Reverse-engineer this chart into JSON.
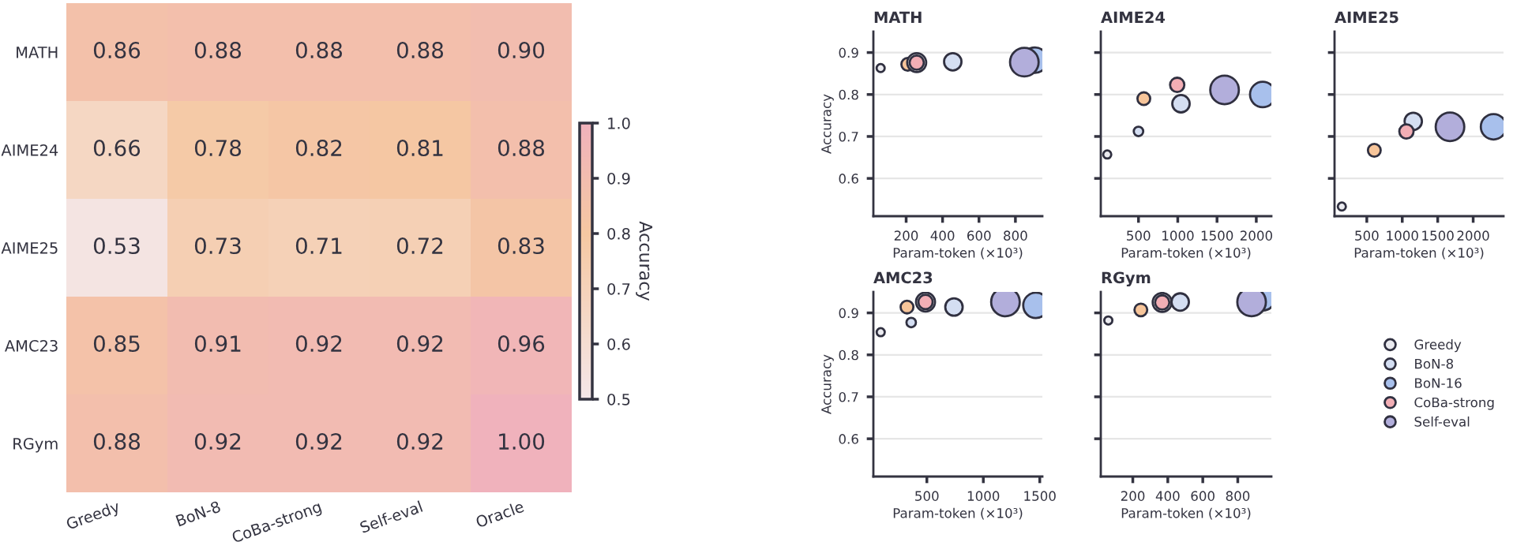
{
  "chart_data": [
    {
      "type": "heatmap",
      "categories": [
        "Greedy",
        "BoN-8",
        "CoBa-strong",
        "Self-eval",
        "Oracle"
      ],
      "y_categories": [
        "MATH",
        "AIME24",
        "AIME25",
        "AMC23",
        "RGym"
      ],
      "cells": [
        [
          0.86,
          0.88,
          0.88,
          0.88,
          0.9
        ],
        [
          0.66,
          0.78,
          0.82,
          0.81,
          0.88
        ],
        [
          0.53,
          0.73,
          0.71,
          0.72,
          0.83
        ],
        [
          0.85,
          0.91,
          0.92,
          0.92,
          0.96
        ],
        [
          0.88,
          0.92,
          0.92,
          0.92,
          1.0
        ]
      ],
      "cell_labels": [
        [
          "0.86",
          "0.88",
          "0.88",
          "0.88",
          "0.90"
        ],
        [
          "0.66",
          "0.78",
          "0.82",
          "0.81",
          "0.88"
        ],
        [
          "0.53",
          "0.73",
          "0.71",
          "0.72",
          "0.83"
        ],
        [
          "0.85",
          "0.91",
          "0.92",
          "0.92",
          "0.96"
        ],
        [
          "0.88",
          "0.92",
          "0.92",
          "0.92",
          "1.00"
        ]
      ],
      "clim": [
        0.5,
        1.0
      ],
      "cticks": [
        {
          "value": 0.5,
          "label": "0.5"
        },
        {
          "value": 0.6,
          "label": "0.6"
        },
        {
          "value": 0.7,
          "label": "0.7"
        },
        {
          "value": 0.8,
          "label": "0.8"
        },
        {
          "value": 0.9,
          "label": "0.9"
        },
        {
          "value": 1.0,
          "label": "1.0"
        }
      ],
      "clabel": "Accuracy"
    },
    {
      "type": "bubble",
      "title": "MATH",
      "xlabel": "Param-token (×10³)",
      "ylabel": "Accuracy",
      "xlim": [
        20,
        948
      ],
      "xticks": [
        200,
        400,
        600,
        800
      ],
      "ylim": [
        0.51,
        0.95
      ],
      "yticks": [
        0.6,
        0.7,
        0.8,
        0.9
      ],
      "grid": "y",
      "series": [
        {
          "color": "#f7c59a",
          "x": [
            209
          ],
          "values": [
            0.872
          ],
          "sizes": [
            0.2
          ]
        },
        {
          "color": "#ffffff",
          "x": [
            258
          ],
          "values": [
            0.876
          ],
          "sizes": [
            0.44
          ]
        },
        {
          "color": "#ebebf0",
          "x": [
            60
          ],
          "values": [
            0.863
          ],
          "sizes": [
            0.08
          ]
        },
        {
          "color": "#d4def2",
          "x": [
            456
          ],
          "values": [
            0.878
          ],
          "sizes": [
            0.37
          ]
        },
        {
          "color": "#a8c0ec",
          "x": [
            907
          ],
          "values": [
            0.882
          ],
          "sizes": [
            0.79
          ]
        },
        {
          "color": "#f2aeb5",
          "x": [
            258
          ],
          "values": [
            0.876
          ],
          "sizes": [
            0.25
          ]
        },
        {
          "color": "#b2aedb",
          "x": [
            849
          ],
          "values": [
            0.877
          ],
          "sizes": [
            1
          ]
        }
      ]
    },
    {
      "type": "bubble",
      "title": "AIME24",
      "xlabel": "Param-token (×10³)",
      "xlim": [
        20,
        2192
      ],
      "xticks": [
        500,
        1000,
        1500,
        2000
      ],
      "ylim": [
        0.51,
        0.95
      ],
      "yticks": [
        0.6,
        0.7,
        0.8,
        0.9
      ],
      "grid": "y",
      "tick_labels": "x",
      "series": [
        {
          "color": "#f7c59a",
          "x": [
            568
          ],
          "values": [
            0.79
          ],
          "sizes": [
            0.2
          ]
        },
        {
          "color": "#d4def2",
          "x": [
            500
          ],
          "values": [
            0.712
          ],
          "sizes": [
            0.11
          ]
        },
        {
          "color": "#ebebf0",
          "x": [
            102
          ],
          "values": [
            0.657
          ],
          "sizes": [
            0.08
          ]
        },
        {
          "color": "#d4def2",
          "x": [
            1041
          ],
          "values": [
            0.778
          ],
          "sizes": [
            0.37
          ]
        },
        {
          "color": "#a8c0ec",
          "x": [
            2082
          ],
          "values": [
            0.8
          ],
          "sizes": [
            0.79
          ]
        },
        {
          "color": "#f2aeb5",
          "x": [
            993
          ],
          "values": [
            0.823
          ],
          "sizes": [
            0.25
          ]
        },
        {
          "color": "#b2aedb",
          "x": [
            1596
          ],
          "values": [
            0.811
          ],
          "sizes": [
            1
          ]
        }
      ]
    },
    {
      "type": "bubble",
      "title": "AIME25",
      "xlabel": "Param-token (×10³)",
      "xlim": [
        45,
        2428
      ],
      "xticks": [
        500,
        1000,
        1500,
        2000
      ],
      "ylim": [
        0.51,
        0.95
      ],
      "yticks": [
        0.6,
        0.7,
        0.8,
        0.9
      ],
      "grid": "y",
      "tick_labels": "x",
      "series": [
        {
          "color": "#f7c59a",
          "x": [
            606
          ],
          "values": [
            0.667
          ],
          "sizes": [
            0.2
          ]
        },
        {
          "color": "#ebebf0",
          "x": [
            148
          ],
          "values": [
            0.533
          ],
          "sizes": [
            0.08
          ]
        },
        {
          "color": "#d4def2",
          "x": [
            1155
          ],
          "values": [
            0.736
          ],
          "sizes": [
            0.37
          ]
        },
        {
          "color": "#a8c0ec",
          "x": [
            2287
          ],
          "values": [
            0.723
          ],
          "sizes": [
            0.79
          ]
        },
        {
          "color": "#f2aeb5",
          "x": [
            1059
          ],
          "values": [
            0.712
          ],
          "sizes": [
            0.25
          ]
        },
        {
          "color": "#b2aedb",
          "x": [
            1673
          ],
          "values": [
            0.723
          ],
          "sizes": [
            1
          ]
        }
      ]
    },
    {
      "type": "bubble",
      "title": "AMC23",
      "xlabel": "Param-token (×10³)",
      "ylabel": "Accuracy",
      "xlim": [
        26,
        1523
      ],
      "xticks": [
        500,
        1000,
        1500
      ],
      "ylim": [
        0.51,
        0.95
      ],
      "yticks": [
        0.6,
        0.7,
        0.8,
        0.9
      ],
      "grid": "y",
      "series": [
        {
          "color": "#f7c59a",
          "x": [
            324
          ],
          "values": [
            0.914
          ],
          "sizes": [
            0.2
          ]
        },
        {
          "color": "#d4def2",
          "x": [
            361
          ],
          "values": [
            0.877
          ],
          "sizes": [
            0.11
          ]
        },
        {
          "color": "#ffffff",
          "x": [
            488
          ],
          "values": [
            0.926
          ],
          "sizes": [
            0.44
          ]
        },
        {
          "color": "#ebebf0",
          "x": [
            91
          ],
          "values": [
            0.854
          ],
          "sizes": [
            0.08
          ]
        },
        {
          "color": "#d4def2",
          "x": [
            740
          ],
          "values": [
            0.914
          ],
          "sizes": [
            0.37
          ]
        },
        {
          "color": "#a8c0ec",
          "x": [
            1466
          ],
          "values": [
            0.918
          ],
          "sizes": [
            0.79
          ]
        },
        {
          "color": "#f2aeb5",
          "x": [
            488
          ],
          "values": [
            0.926
          ],
          "sizes": [
            0.25
          ]
        },
        {
          "color": "#b2aedb",
          "x": [
            1196
          ],
          "values": [
            0.926
          ],
          "sizes": [
            1
          ]
        }
      ]
    },
    {
      "type": "bubble",
      "title": "RGym",
      "xlabel": "Param-token (×10³)",
      "xlim": [
        17,
        992
      ],
      "xticks": [
        200,
        400,
        600,
        800
      ],
      "ylim": [
        0.51,
        0.95
      ],
      "yticks": [
        0.6,
        0.7,
        0.8,
        0.9
      ],
      "grid": "y",
      "tick_labels": "x",
      "legend": "right",
      "series": [
        {
          "color": "#f7c59a",
          "x": [
            246
          ],
          "values": [
            0.907
          ],
          "sizes": [
            0.2
          ]
        },
        {
          "color": "#ffffff",
          "x": [
            368
          ],
          "values": [
            0.925
          ],
          "sizes": [
            0.44
          ]
        },
        {
          "name": "Greedy",
          "color": "#ebebf0",
          "x": [
            60
          ],
          "values": [
            0.882
          ],
          "sizes": [
            0.08
          ]
        },
        {
          "name": "BoN-8",
          "color": "#d4def2",
          "x": [
            471
          ],
          "values": [
            0.926
          ],
          "sizes": [
            0.37
          ]
        },
        {
          "name": "BoN-16",
          "color": "#a8c0ec",
          "x": [
            943
          ],
          "values": [
            0.936
          ],
          "sizes": [
            0.79
          ]
        },
        {
          "name": "CoBa-strong",
          "color": "#f2aeb5",
          "x": [
            368
          ],
          "values": [
            0.925
          ],
          "sizes": [
            0.25
          ]
        },
        {
          "name": "Self-eval",
          "color": "#b2aedb",
          "x": [
            879
          ],
          "values": [
            0.926
          ],
          "sizes": [
            1
          ]
        }
      ]
    }
  ]
}
